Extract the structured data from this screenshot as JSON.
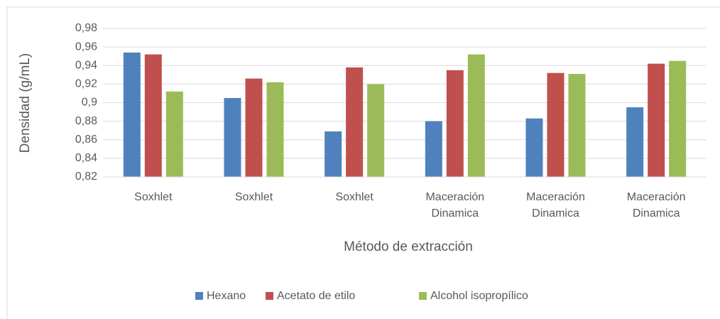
{
  "chart_data": {
    "type": "bar",
    "categories": [
      "Soxhlet",
      "Soxhlet",
      "Soxhlet",
      "Maceración Dinamica",
      "Maceración Dinamica",
      "Maceración Dinamica"
    ],
    "series": [
      {
        "name": "Hexano",
        "color": "#4f81bd",
        "values": [
          0.954,
          0.905,
          0.869,
          0.88,
          0.883,
          0.895
        ]
      },
      {
        "name": "Acetato de etilo",
        "color": "#c0504d",
        "values": [
          0.952,
          0.926,
          0.938,
          0.935,
          0.932,
          0.942
        ]
      },
      {
        "name": "Alcohol isopropílico",
        "color": "#9bbb59",
        "values": [
          0.912,
          0.922,
          0.92,
          0.952,
          0.931,
          0.945
        ]
      }
    ],
    "ylabel": "Densidad (g/mL)",
    "xlabel": "Método de extracción",
    "ylim": [
      0.82,
      0.98
    ],
    "yticks": [
      {
        "value": 0.82,
        "label": "0,82"
      },
      {
        "value": 0.84,
        "label": "0,84"
      },
      {
        "value": 0.86,
        "label": "0,86"
      },
      {
        "value": 0.88,
        "label": "0,88"
      },
      {
        "value": 0.9,
        "label": "0,9"
      },
      {
        "value": 0.92,
        "label": "0,92"
      },
      {
        "value": 0.94,
        "label": "0,94"
      },
      {
        "value": 0.96,
        "label": "0,96"
      },
      {
        "value": 0.98,
        "label": "0,98"
      }
    ],
    "grid": true,
    "legend": "bottom"
  }
}
